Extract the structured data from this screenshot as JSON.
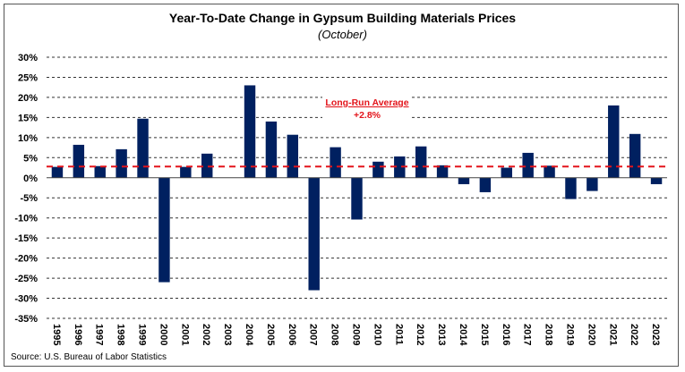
{
  "chart_data": {
    "type": "bar",
    "title": "Year-To-Date Change in Gypsum Building Materials Prices",
    "subtitle": "(October)",
    "source": "Source: U.S. Bureau of Labor Statistics",
    "categories": [
      "1995",
      "1996",
      "1997",
      "1998",
      "1999",
      "2000",
      "2001",
      "2002",
      "2003",
      "2004",
      "2005",
      "2006",
      "2007",
      "2008",
      "2009",
      "2010",
      "2011",
      "2012",
      "2013",
      "2014",
      "2015",
      "2016",
      "2017",
      "2018",
      "2019",
      "2020",
      "2021",
      "2022",
      "2023"
    ],
    "values": [
      2.7,
      8.2,
      2.9,
      7.1,
      14.7,
      -26.0,
      2.7,
      6.0,
      0.0,
      23.0,
      14.0,
      10.7,
      -28.0,
      7.6,
      -10.4,
      4.0,
      5.3,
      7.8,
      3.1,
      -1.6,
      -3.6,
      2.5,
      6.2,
      3.0,
      -5.3,
      -3.3,
      18.0,
      10.9,
      -1.6
    ],
    "unit": "%",
    "ylim": [
      -35,
      30
    ],
    "yticks": [
      30,
      25,
      20,
      15,
      10,
      5,
      0,
      -5,
      -10,
      -15,
      -20,
      -25,
      -30,
      -35
    ],
    "ytick_labels": [
      "30%",
      "25%",
      "20%",
      "15%",
      "10%",
      "5%",
      "0%",
      "-5%",
      "-10%",
      "-15%",
      "-20%",
      "-25%",
      "-30%",
      "-35%"
    ],
    "grid": true,
    "bar_color": "#002060",
    "average": {
      "value": 2.8,
      "label": "Long-Run Average",
      "value_label": "+2.8%",
      "color": "#e3141b"
    }
  }
}
